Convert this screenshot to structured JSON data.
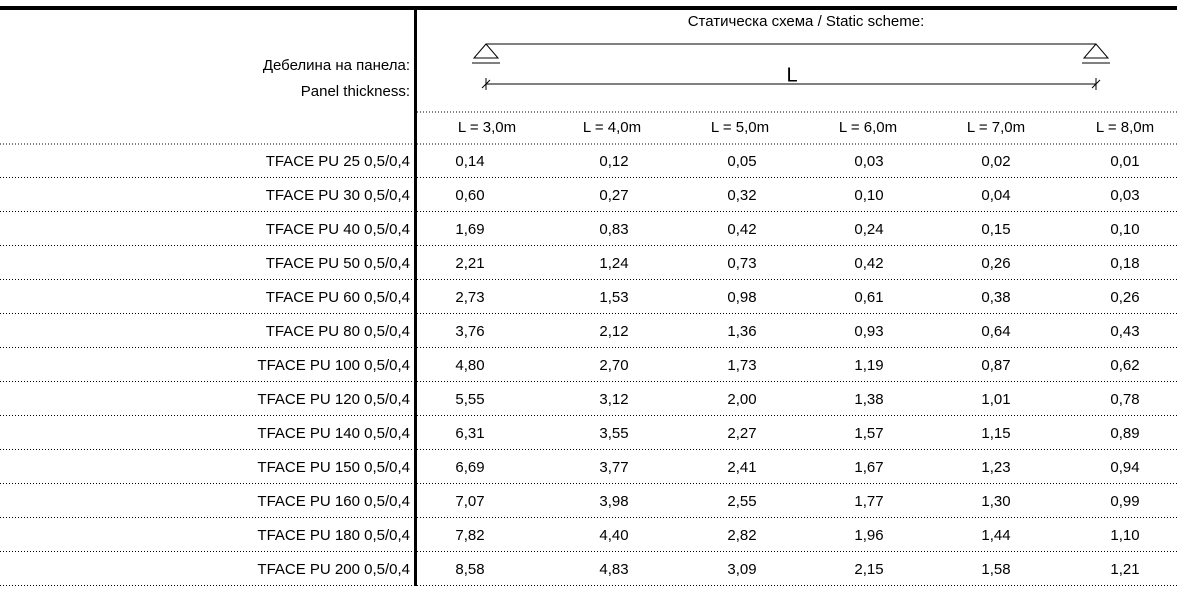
{
  "header": {
    "scheme_title": "Статическа схема / Static scheme:",
    "thickness_bg": "Дебелина на панела:",
    "thickness_en": "Panel thickness:",
    "span_label": "L"
  },
  "table": {
    "columns": [
      "L = 3,0m",
      "L = 4,0m",
      "L = 5,0m",
      "L = 6,0m",
      "L = 7,0m",
      "L = 8,0m"
    ],
    "rows": [
      {
        "label": "TFACE PU 25 0,5/0,4",
        "values": [
          "0,14",
          "0,12",
          "0,05",
          "0,03",
          "0,02",
          "0,01"
        ],
        "colors": [
          "#c00000",
          "#c00000",
          "#c00000",
          "#c00000",
          "#c00000",
          "#c00000"
        ]
      },
      {
        "label": "TFACE PU 30 0,5/0,4",
        "values": [
          "0,60",
          "0,27",
          "0,32",
          "0,10",
          "0,04",
          "0,03"
        ],
        "colors": [
          "#c00000",
          "#c00000",
          "#c00000",
          "#c00000",
          "#c00000",
          "#c00000"
        ]
      },
      {
        "label": "TFACE PU 40 0,5/0,4",
        "values": [
          "1,69",
          "0,83",
          "0,42",
          "0,24",
          "0,15",
          "0,10"
        ],
        "colors": [
          "#000000",
          "#c00000",
          "#c00000",
          "#c00000",
          "#c00000",
          "#c00000"
        ]
      },
      {
        "label": "TFACE PU 50 0,5/0,4",
        "values": [
          "2,21",
          "1,24",
          "0,73",
          "0,42",
          "0,26",
          "0,18"
        ],
        "colors": [
          "#000000",
          "#000000",
          "#c00000",
          "#c00000",
          "#c00000",
          "#c00000"
        ]
      },
      {
        "label": "TFACE PU 60 0,5/0,4",
        "values": [
          "2,73",
          "1,53",
          "0,98",
          "0,61",
          "0,38",
          "0,26"
        ],
        "colors": [
          "#000000",
          "#000000",
          "#000000",
          "#c00000",
          "#c00000",
          "#c00000"
        ]
      },
      {
        "label": "TFACE PU 80 0,5/0,4",
        "values": [
          "3,76",
          "2,12",
          "1,36",
          "0,93",
          "0,64",
          "0,43"
        ],
        "colors": [
          "#000000",
          "#000000",
          "#000000",
          "#000000",
          "#c00000",
          "#c00000"
        ]
      },
      {
        "label": "TFACE PU 100 0,5/0,4",
        "values": [
          "4,80",
          "2,70",
          "1,73",
          "1,19",
          "0,87",
          "0,62"
        ],
        "colors": [
          "#000000",
          "#000000",
          "#000000",
          "#000000",
          "#000000",
          "#c00000"
        ]
      },
      {
        "label": "TFACE PU 120 0,5/0,4",
        "values": [
          "5,55",
          "3,12",
          "2,00",
          "1,38",
          "1,01",
          "0,78"
        ],
        "colors": [
          "#000000",
          "#000000",
          "#000000",
          "#000000",
          "#000000",
          "#000000"
        ]
      },
      {
        "label": "TFACE PU 140 0,5/0,4",
        "values": [
          "6,31",
          "3,55",
          "2,27",
          "1,57",
          "1,15",
          "0,89"
        ],
        "colors": [
          "#000000",
          "#000000",
          "#000000",
          "#000000",
          "#000000",
          "#000000"
        ]
      },
      {
        "label": "TFACE PU 150 0,5/0,4",
        "values": [
          "6,69",
          "3,77",
          "2,41",
          "1,67",
          "1,23",
          "0,94"
        ],
        "colors": [
          "#000000",
          "#000000",
          "#000000",
          "#000000",
          "#000000",
          "#000000"
        ]
      },
      {
        "label": "TFACE PU 160 0,5/0,4",
        "values": [
          "7,07",
          "3,98",
          "2,55",
          "1,77",
          "1,30",
          "0,99"
        ],
        "colors": [
          "#000000",
          "#000000",
          "#000000",
          "#000000",
          "#000000",
          "#000000"
        ]
      },
      {
        "label": "TFACE PU 180 0,5/0,4",
        "values": [
          "7,82",
          "4,40",
          "2,82",
          "1,96",
          "1,44",
          "1,10"
        ],
        "colors": [
          "#000000",
          "#000000",
          "#000000",
          "#000000",
          "#000000",
          "#000000"
        ]
      },
      {
        "label": "TFACE PU 200 0,5/0,4",
        "values": [
          "8,58",
          "4,83",
          "3,09",
          "2,15",
          "1,58",
          "1,21"
        ],
        "colors": [
          "#000000",
          "#000000",
          "#000000",
          "#000000",
          "#000000",
          "#000000"
        ]
      }
    ]
  }
}
